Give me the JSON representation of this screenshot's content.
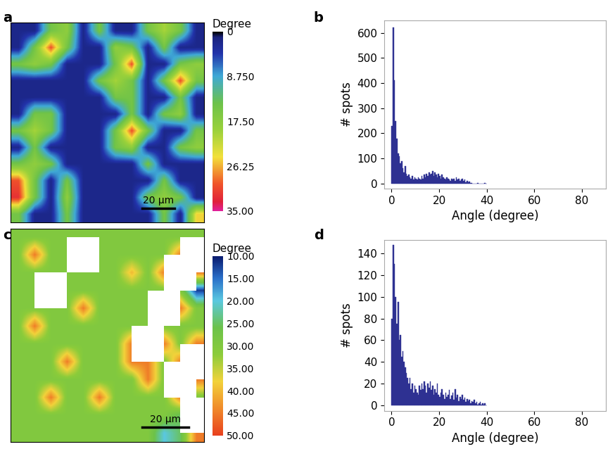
{
  "chart_data": [
    {
      "type": "heatmap",
      "panel_label": "a",
      "colorbar_label": "Degree",
      "colorbar_range": [
        0,
        35
      ],
      "colorbar_ticks": [
        0,
        {
          "value": 8.75,
          "label": "8.750"
        },
        {
          "value": 17.5,
          "label": "17.50"
        },
        26.25,
        {
          "value": 35,
          "label": "35.00"
        }
      ],
      "xlim": [
        0,
        120
      ],
      "ylim": [
        0,
        120
      ],
      "tick_labels": false,
      "scale_bar": {
        "length": 20,
        "label": "20 μm"
      },
      "cells": [
        [
          2,
          2,
          15,
          18,
          2,
          15,
          2,
          2,
          15,
          20,
          15,
          2
        ],
        [
          2,
          15,
          30,
          15,
          2,
          2,
          18,
          15,
          2,
          15,
          2,
          2
        ],
        [
          15,
          18,
          15,
          2,
          2,
          2,
          15,
          30,
          2,
          2,
          15,
          18
        ],
        [
          2,
          2,
          2,
          2,
          2,
          15,
          20,
          15,
          2,
          15,
          30,
          15
        ],
        [
          2,
          2,
          2,
          2,
          2,
          2,
          15,
          15,
          2,
          2,
          15,
          2
        ],
        [
          2,
          15,
          15,
          2,
          2,
          2,
          2,
          15,
          2,
          15,
          18,
          2
        ],
        [
          15,
          20,
          15,
          2,
          2,
          2,
          15,
          30,
          15,
          2,
          2,
          15
        ],
        [
          2,
          15,
          2,
          2,
          2,
          2,
          15,
          18,
          2,
          2,
          15,
          18
        ],
        [
          15,
          18,
          15,
          2,
          2,
          2,
          2,
          2,
          15,
          2,
          2,
          2
        ],
        [
          30,
          15,
          2,
          15,
          2,
          2,
          2,
          2,
          2,
          15,
          2,
          2
        ],
        [
          32,
          15,
          2,
          18,
          2,
          2,
          2,
          2,
          15,
          18,
          15,
          2
        ],
        [
          15,
          2,
          2,
          15,
          2,
          2,
          2,
          2,
          2,
          15,
          2,
          25
        ]
      ]
    },
    {
      "type": "histogram",
      "panel_label": "b",
      "x_label": "Angle (degree)",
      "y_label": "# spots",
      "color": "#2e3192",
      "bins": [
        0,
        0.5,
        1,
        1.5,
        2,
        2.5,
        3,
        3.5,
        4,
        4.5,
        5,
        5.5,
        6,
        6.5,
        7,
        7.5,
        8,
        8.5,
        9,
        9.5,
        10,
        10.5,
        11,
        11.5,
        12,
        12.5,
        13,
        13.5,
        14,
        14.5,
        15,
        15.5,
        16,
        16.5,
        17,
        17.5,
        18,
        18.5,
        19,
        19.5,
        20,
        20.5,
        21,
        21.5,
        22,
        22.5,
        23,
        23.5,
        24,
        24.5,
        25,
        25.5,
        26,
        26.5,
        27,
        27.5,
        28,
        28.5,
        29,
        29.5,
        30,
        30.5,
        31,
        31.5,
        32,
        32.5,
        33,
        33.5,
        34,
        34.5,
        35,
        35.5,
        36,
        36.5,
        37,
        37.5,
        38,
        38.5,
        39,
        39.5,
        40
      ],
      "counts": [
        230,
        620,
        410,
        250,
        180,
        120,
        110,
        80,
        90,
        60,
        45,
        70,
        40,
        30,
        35,
        25,
        20,
        30,
        15,
        25,
        20,
        15,
        25,
        20,
        15,
        30,
        20,
        35,
        25,
        40,
        30,
        45,
        35,
        40,
        50,
        30,
        45,
        35,
        25,
        40,
        30,
        20,
        35,
        25,
        20,
        15,
        25,
        20,
        15,
        10,
        20,
        15,
        20,
        10,
        25,
        15,
        20,
        10,
        15,
        20,
        10,
        15,
        5,
        10,
        5,
        8,
        3,
        2,
        0,
        0,
        0,
        0,
        3,
        0,
        0,
        0,
        0,
        0,
        2,
        0
      ],
      "xlim": [
        -3,
        90
      ],
      "xticks": [
        0,
        20,
        40,
        60,
        80
      ],
      "ylim": [
        -20,
        650
      ],
      "yticks": [
        0,
        100,
        200,
        300,
        400,
        500,
        600
      ],
      "grid": false
    },
    {
      "type": "heatmap",
      "panel_label": "c",
      "colorbar_label": "Degree",
      "colorbar_range": [
        10,
        50
      ],
      "colorbar_ticks": [
        {
          "value": 10,
          "label": "10.00"
        },
        {
          "value": 15,
          "label": "15.00"
        },
        {
          "value": 20,
          "label": "20.00"
        },
        {
          "value": 25,
          "label": "25.00"
        },
        {
          "value": 30,
          "label": "30.00"
        },
        {
          "value": 35,
          "label": "35.00"
        },
        {
          "value": 40,
          "label": "40.00"
        },
        {
          "value": 45,
          "label": "45.00"
        },
        {
          "value": 50,
          "label": "50.00"
        }
      ],
      "xlim": [
        0,
        84
      ],
      "ylim": [
        0,
        84
      ],
      "tick_labels": false,
      "scale_bar": {
        "length": 20,
        "label": "20 μm"
      },
      "cells": [
        [
          30,
          30,
          30,
          30,
          30,
          30,
          30,
          30,
          30,
          30,
          30,
          30
        ],
        [
          30,
          45,
          30,
          30,
          null,
          30,
          30,
          30,
          30,
          30,
          45,
          null
        ],
        [
          30,
          30,
          30,
          30,
          30,
          30,
          30,
          40,
          30,
          45,
          null,
          45
        ],
        [
          30,
          30,
          null,
          30,
          30,
          30,
          30,
          30,
          30,
          30,
          30,
          12
        ],
        [
          30,
          30,
          30,
          30,
          45,
          30,
          30,
          30,
          30,
          null,
          45,
          30
        ],
        [
          30,
          45,
          30,
          30,
          30,
          30,
          30,
          30,
          30,
          30,
          30,
          30
        ],
        [
          30,
          30,
          30,
          30,
          30,
          30,
          30,
          45,
          null,
          45,
          30,
          45
        ],
        [
          30,
          30,
          30,
          45,
          30,
          30,
          30,
          45,
          45,
          30,
          45,
          null
        ],
        [
          30,
          30,
          30,
          30,
          30,
          30,
          30,
          30,
          45,
          30,
          null,
          45
        ],
        [
          30,
          30,
          45,
          30,
          30,
          45,
          30,
          30,
          30,
          30,
          45,
          30
        ],
        [
          30,
          30,
          30,
          30,
          30,
          30,
          30,
          30,
          30,
          30,
          25,
          null
        ],
        [
          30,
          30,
          30,
          30,
          30,
          30,
          30,
          30,
          30,
          20,
          25,
          45
        ]
      ]
    },
    {
      "type": "histogram",
      "panel_label": "d",
      "x_label": "Angle (degree)",
      "y_label": "# spots",
      "color": "#2e3192",
      "bins": [
        0,
        0.5,
        1,
        1.5,
        2,
        2.5,
        3,
        3.5,
        4,
        4.5,
        5,
        5.5,
        6,
        6.5,
        7,
        7.5,
        8,
        8.5,
        9,
        9.5,
        10,
        10.5,
        11,
        11.5,
        12,
        12.5,
        13,
        13.5,
        14,
        14.5,
        15,
        15.5,
        16,
        16.5,
        17,
        17.5,
        18,
        18.5,
        19,
        19.5,
        20,
        20.5,
        21,
        21.5,
        22,
        22.5,
        23,
        23.5,
        24,
        24.5,
        25,
        25.5,
        26,
        26.5,
        27,
        27.5,
        28,
        28.5,
        29,
        29.5,
        30,
        30.5,
        31,
        31.5,
        32,
        32.5,
        33,
        33.5,
        34,
        34.5,
        35,
        35.5,
        36,
        36.5,
        37,
        37.5,
        38,
        38.5,
        39,
        39.5,
        40
      ],
      "counts": [
        80,
        148,
        130,
        100,
        75,
        95,
        60,
        65,
        45,
        50,
        40,
        35,
        30,
        25,
        20,
        25,
        15,
        20,
        12,
        18,
        15,
        12,
        10,
        18,
        14,
        20,
        15,
        22,
        18,
        12,
        20,
        16,
        22,
        14,
        18,
        10,
        15,
        12,
        20,
        10,
        8,
        12,
        15,
        10,
        6,
        12,
        8,
        10,
        14,
        6,
        9,
        12,
        5,
        15,
        7,
        10,
        4,
        8,
        6,
        10,
        5,
        7,
        3,
        6,
        4,
        5,
        2,
        4,
        3,
        5,
        2,
        3,
        1,
        2,
        3,
        1,
        2,
        1,
        2,
        0
      ],
      "xlim": [
        -3,
        90
      ],
      "xticks": [
        0,
        20,
        40,
        60,
        80
      ],
      "ylim": [
        -5,
        152
      ],
      "yticks": [
        0,
        20,
        40,
        60,
        80,
        100,
        120,
        140
      ],
      "grid": false
    }
  ]
}
